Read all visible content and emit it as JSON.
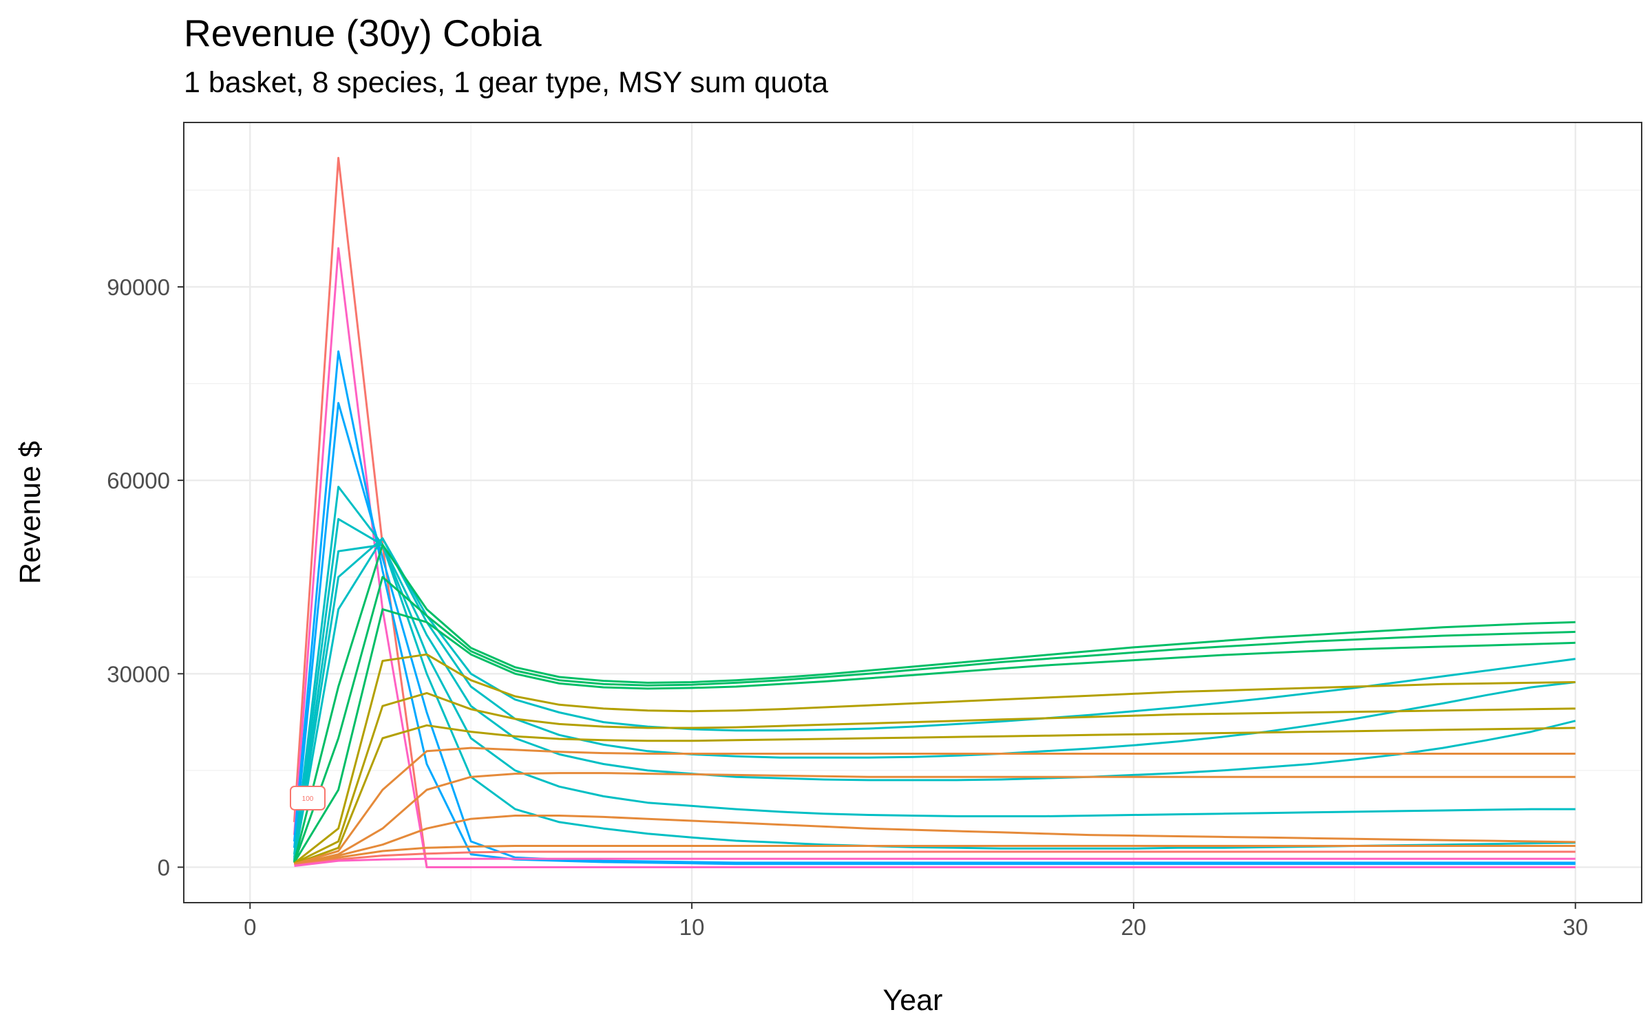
{
  "chart_data": {
    "type": "line",
    "title": "Revenue (30y) Cobia",
    "subtitle": "1 basket, 8 species, 1 gear type, MSY sum quota",
    "xlabel": "Year",
    "ylabel": "Revenue $",
    "xlim": [
      -1.5,
      31.5
    ],
    "ylim": [
      -5500,
      115500
    ],
    "x_ticks": [
      0,
      10,
      20,
      30
    ],
    "x_tick_labels": [
      "0",
      "10",
      "20",
      "30"
    ],
    "y_ticks": [
      0,
      30000,
      60000,
      90000
    ],
    "y_tick_labels": [
      "0",
      "30000",
      "60000",
      "90000"
    ],
    "grid": true,
    "legend": "none",
    "annotation": "100",
    "colors": {
      "red": "#f8766d",
      "orange": "#e58a3a",
      "olive": "#b3a000",
      "green": "#00be67",
      "teal": "#00bfc4",
      "blue": "#00a9ff",
      "pink": "#ff61c3"
    },
    "x": [
      1,
      2,
      3,
      4,
      5,
      6,
      7,
      8,
      9,
      10,
      11,
      12,
      13,
      14,
      15,
      16,
      17,
      18,
      19,
      20,
      21,
      22,
      23,
      24,
      25,
      26,
      27,
      28,
      29,
      30
    ],
    "series": [
      {
        "color": "#f8766d",
        "values": [
          7000,
          110000,
          50000,
          0,
          0,
          0,
          0,
          0,
          0,
          0,
          0,
          0,
          0,
          0,
          0,
          0,
          0,
          0,
          0,
          0,
          0,
          0,
          0,
          0,
          0,
          0,
          0,
          0,
          0,
          0
        ]
      },
      {
        "color": "#ff61c3",
        "values": [
          5000,
          96000,
          40000,
          0,
          0,
          0,
          0,
          0,
          0,
          0,
          0,
          0,
          0,
          0,
          0,
          0,
          0,
          0,
          0,
          0,
          0,
          0,
          0,
          0,
          0,
          0,
          0,
          0,
          0,
          0
        ]
      },
      {
        "color": "#00a9ff",
        "values": [
          4000,
          80000,
          46000,
          16000,
          2000,
          1200,
          1000,
          800,
          700,
          600,
          500,
          500,
          500,
          500,
          500,
          500,
          500,
          500,
          500,
          500,
          500,
          500,
          500,
          500,
          500,
          500,
          500,
          500,
          500,
          500
        ]
      },
      {
        "color": "#00a9ff",
        "values": [
          3000,
          72000,
          48000,
          24000,
          4000,
          1500,
          1200,
          1000,
          900,
          800,
          700,
          700,
          700,
          700,
          700,
          700,
          700,
          700,
          700,
          700,
          700,
          700,
          700,
          700,
          700,
          700,
          700,
          700,
          700,
          700
        ]
      },
      {
        "color": "#00bfc4",
        "values": [
          2000,
          59000,
          50000,
          30000,
          14000,
          9000,
          7000,
          6000,
          5200,
          4600,
          4100,
          3800,
          3500,
          3300,
          3100,
          3000,
          2900,
          2900,
          2900,
          2900,
          3000,
          3000,
          3100,
          3200,
          3300,
          3400,
          3500,
          3600,
          3700,
          3800
        ]
      },
      {
        "color": "#00bfc4",
        "values": [
          1500,
          54000,
          50000,
          33000,
          20000,
          15000,
          12500,
          11000,
          10000,
          9500,
          9000,
          8600,
          8300,
          8100,
          8000,
          7900,
          7900,
          7900,
          8000,
          8100,
          8200,
          8300,
          8400,
          8500,
          8600,
          8700,
          8800,
          8900,
          9000,
          9000
        ]
      },
      {
        "color": "#00bfc4",
        "values": [
          1200,
          49000,
          50000,
          36000,
          25000,
          20000,
          17500,
          16000,
          15000,
          14500,
          14000,
          13800,
          13600,
          13500,
          13500,
          13500,
          13600,
          13800,
          14000,
          14300,
          14600,
          15000,
          15500,
          16000,
          16700,
          17500,
          18500,
          19700,
          21000,
          22700
        ]
      },
      {
        "color": "#00bfc4",
        "values": [
          1000,
          45000,
          51000,
          38000,
          28000,
          23000,
          20500,
          19000,
          18000,
          17500,
          17200,
          17000,
          17000,
          17000,
          17100,
          17300,
          17600,
          18000,
          18400,
          18900,
          19500,
          20200,
          21000,
          22000,
          23000,
          24200,
          25400,
          26700,
          27900,
          28700
        ]
      },
      {
        "color": "#00bfc4",
        "values": [
          900,
          40000,
          51000,
          39000,
          30000,
          26000,
          24000,
          22500,
          21800,
          21400,
          21200,
          21200,
          21300,
          21500,
          21800,
          22200,
          22600,
          23100,
          23600,
          24200,
          24800,
          25500,
          26200,
          27000,
          27800,
          28700,
          29600,
          30500,
          31400,
          32300
        ]
      },
      {
        "color": "#00be67",
        "values": [
          800,
          28000,
          50000,
          40000,
          34000,
          31000,
          29500,
          28900,
          28600,
          28700,
          29000,
          29400,
          29900,
          30500,
          31100,
          31700,
          32300,
          32900,
          33500,
          34100,
          34600,
          35100,
          35600,
          36000,
          36400,
          36800,
          37200,
          37500,
          37800,
          38000
        ]
      },
      {
        "color": "#00be67",
        "values": [
          700,
          20000,
          45000,
          39000,
          33500,
          30500,
          29000,
          28400,
          28200,
          28300,
          28600,
          29000,
          29500,
          30000,
          30600,
          31200,
          31800,
          32300,
          32800,
          33300,
          33800,
          34200,
          34600,
          35000,
          35300,
          35600,
          35900,
          36100,
          36300,
          36500
        ]
      },
      {
        "color": "#00be67",
        "values": [
          700,
          12000,
          40000,
          38000,
          33000,
          30000,
          28500,
          27900,
          27700,
          27800,
          28000,
          28400,
          28800,
          29300,
          29800,
          30300,
          30800,
          31300,
          31700,
          32100,
          32500,
          32900,
          33200,
          33500,
          33800,
          34000,
          34200,
          34400,
          34600,
          34800
        ]
      },
      {
        "color": "#b3a000",
        "values": [
          600,
          6000,
          32000,
          33000,
          29000,
          26500,
          25200,
          24600,
          24300,
          24200,
          24300,
          24500,
          24800,
          25100,
          25400,
          25700,
          26000,
          26300,
          26600,
          26900,
          27200,
          27400,
          27600,
          27800,
          28000,
          28200,
          28400,
          28500,
          28600,
          28700
        ]
      },
      {
        "color": "#b3a000",
        "values": [
          600,
          4000,
          25000,
          27000,
          24500,
          23000,
          22200,
          21800,
          21600,
          21600,
          21700,
          21900,
          22100,
          22300,
          22500,
          22700,
          22900,
          23100,
          23300,
          23500,
          23700,
          23800,
          23900,
          24000,
          24100,
          24200,
          24300,
          24400,
          24500,
          24600
        ]
      },
      {
        "color": "#b3a000",
        "values": [
          500,
          3000,
          20000,
          22000,
          21000,
          20300,
          19900,
          19700,
          19600,
          19600,
          19700,
          19800,
          19900,
          20000,
          20100,
          20200,
          20300,
          20400,
          20500,
          20600,
          20700,
          20800,
          20900,
          21000,
          21100,
          21200,
          21300,
          21400,
          21500,
          21600
        ]
      },
      {
        "color": "#e58a3a",
        "values": [
          500,
          2500,
          12000,
          18000,
          18500,
          18200,
          17900,
          17700,
          17600,
          17600,
          17600,
          17600,
          17600,
          17600,
          17600,
          17600,
          17600,
          17600,
          17600,
          17600,
          17600,
          17600,
          17600,
          17600,
          17600,
          17600,
          17600,
          17600,
          17600,
          17600
        ]
      },
      {
        "color": "#e58a3a",
        "values": [
          400,
          2000,
          6000,
          12000,
          14000,
          14500,
          14600,
          14600,
          14500,
          14400,
          14300,
          14200,
          14100,
          14000,
          14000,
          14000,
          14000,
          14000,
          14000,
          14000,
          14000,
          14000,
          14000,
          14000,
          14000,
          14000,
          14000,
          14000,
          14000,
          14000
        ]
      },
      {
        "color": "#e58a3a",
        "values": [
          400,
          1800,
          3500,
          6000,
          7500,
          8000,
          8000,
          7800,
          7500,
          7200,
          6900,
          6600,
          6300,
          6000,
          5800,
          5600,
          5400,
          5200,
          5000,
          4900,
          4800,
          4700,
          4600,
          4500,
          4400,
          4300,
          4200,
          4100,
          4000,
          3900
        ]
      },
      {
        "color": "#e58a3a",
        "values": [
          300,
          1500,
          2500,
          3000,
          3200,
          3300,
          3300,
          3300,
          3300,
          3300,
          3300,
          3300,
          3300,
          3300,
          3300,
          3300,
          3300,
          3300,
          3300,
          3300,
          3300,
          3300,
          3300,
          3300,
          3300,
          3300,
          3300,
          3300,
          3300,
          3300
        ]
      },
      {
        "color": "#f8766d",
        "values": [
          300,
          1200,
          1800,
          2100,
          2300,
          2400,
          2400,
          2400,
          2400,
          2400,
          2400,
          2400,
          2400,
          2400,
          2400,
          2400,
          2400,
          2400,
          2400,
          2400,
          2400,
          2400,
          2400,
          2400,
          2400,
          2400,
          2400,
          2400,
          2400,
          2400
        ]
      },
      {
        "color": "#ff61c3",
        "values": [
          200,
          1000,
          1200,
          1300,
          1300,
          1300,
          1300,
          1300,
          1300,
          1300,
          1300,
          1300,
          1300,
          1300,
          1300,
          1300,
          1300,
          1300,
          1300,
          1300,
          1300,
          1300,
          1300,
          1300,
          1300,
          1300,
          1300,
          1300,
          1300,
          1300
        ]
      }
    ]
  }
}
